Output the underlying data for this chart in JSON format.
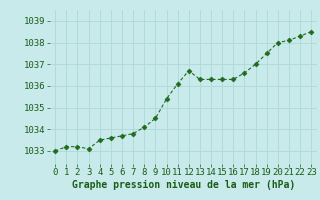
{
  "x": [
    0,
    1,
    2,
    3,
    4,
    5,
    6,
    7,
    8,
    9,
    10,
    11,
    12,
    13,
    14,
    15,
    16,
    17,
    18,
    19,
    20,
    21,
    22,
    23
  ],
  "y": [
    1033.0,
    1033.2,
    1033.2,
    1033.1,
    1033.5,
    1033.6,
    1033.7,
    1033.8,
    1034.1,
    1034.5,
    1035.4,
    1036.1,
    1036.7,
    1036.3,
    1036.3,
    1036.3,
    1036.3,
    1036.6,
    1037.0,
    1037.5,
    1038.0,
    1038.1,
    1038.3,
    1038.5
  ],
  "line_color": "#1f6b1f",
  "marker": "D",
  "marker_size": 2.5,
  "bg_color": "#c8eaea",
  "grid_color": "#b0d8d8",
  "xlabel": "Graphe pression niveau de la mer (hPa)",
  "xlabel_color": "#1a5c1a",
  "tick_label_color": "#1a5c1a",
  "ylim_min": 1032.4,
  "ylim_max": 1039.5,
  "ytick_positions": [
    1033,
    1034,
    1035,
    1036,
    1037,
    1038,
    1039
  ],
  "font_size_ticks": 6.5,
  "font_size_xlabel": 7.0,
  "linewidth": 0.8,
  "dash_pattern": [
    3,
    2
  ]
}
